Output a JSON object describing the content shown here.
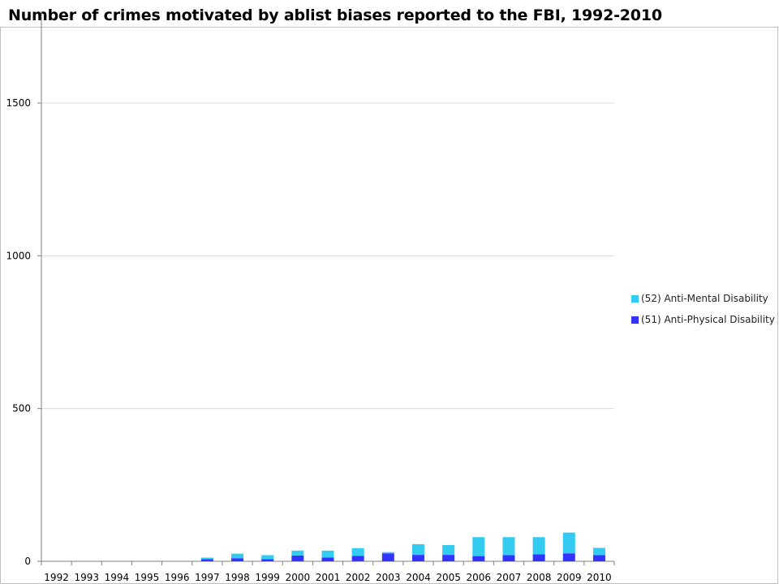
{
  "chart_data": {
    "type": "bar",
    "stacked": true,
    "title": "Number of crimes motivated by ablist biases reported to the FBI, 1992-2010",
    "xlabel": "",
    "ylabel": "",
    "ylim": [
      0,
      1800
    ],
    "yticks": [
      0,
      500,
      1000,
      1500
    ],
    "grid": true,
    "legend_position": "right",
    "categories": [
      "1992",
      "1993",
      "1994",
      "1995",
      "1996",
      "1997",
      "1998",
      "1999",
      "2000",
      "2001",
      "2002",
      "2003",
      "2004",
      "2005",
      "2006",
      "2007",
      "2008",
      "2009",
      "2010"
    ],
    "series": [
      {
        "name": "(51) Anti-Physical Disability",
        "color": "#3333ff",
        "values": [
          0,
          0,
          0,
          0,
          0,
          7,
          10,
          7,
          19,
          12,
          18,
          26,
          21,
          21,
          17,
          20,
          23,
          26,
          20
        ]
      },
      {
        "name": "(52) Anti-Mental Disability",
        "color": "#33ccf0",
        "values": [
          0,
          0,
          0,
          0,
          0,
          5,
          15,
          13,
          16,
          23,
          25,
          4,
          35,
          32,
          62,
          59,
          56,
          68,
          24
        ]
      }
    ]
  }
}
